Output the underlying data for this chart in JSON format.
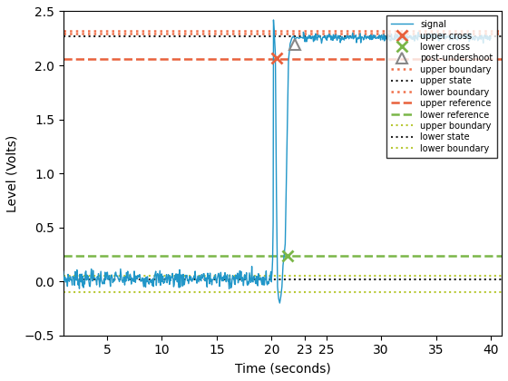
{
  "xlabel": "Time (seconds)",
  "ylabel": "Level (Volts)",
  "xlim": [
    1,
    41
  ],
  "ylim": [
    -0.5,
    2.5
  ],
  "xticks": [
    5,
    10,
    15,
    20,
    23,
    25,
    30,
    35,
    40
  ],
  "xticklabels": [
    "5",
    "10",
    "15",
    "20",
    "23",
    "25",
    "30",
    "35",
    "40"
  ],
  "yticks": [
    -0.5,
    0.0,
    0.5,
    1.0,
    1.5,
    2.0,
    2.5
  ],
  "signal_color": "#2196c8",
  "upper_cross_color": "#e8613c",
  "lower_cross_color": "#7ab648",
  "post_undershoot_color": "#888888",
  "upper_boundary_color": "#f0704a",
  "upper_state_color": "#222222",
  "lower_boundary_upper_color": "#f0704a",
  "upper_reference_color": "#e8613c",
  "lower_reference_color": "#7ab648",
  "upper_boundary_lower_color": "#b8c832",
  "lower_state_color": "#222222",
  "lower_boundary_lower_color": "#b8c832",
  "upper_boundary_val": 2.32,
  "upper_state_val": 2.265,
  "lower_boundary_upper_val": 2.295,
  "upper_reference_val": 2.06,
  "lower_reference_val": 0.24,
  "upper_boundary_lower_val": 0.055,
  "lower_state_val": 0.018,
  "lower_boundary_lower_val": -0.095,
  "upper_cross_x": 20.5,
  "upper_cross_y": 2.065,
  "lower_cross_x": 21.5,
  "lower_cross_y": 0.24,
  "post_undershoot_x": 22.1,
  "post_undershoot_y": 2.195,
  "noise_seed": 7,
  "signal_pre_mean": 0.025,
  "signal_pre_std": 0.04,
  "signal_post_mean": 2.26,
  "signal_post_std": 0.018
}
